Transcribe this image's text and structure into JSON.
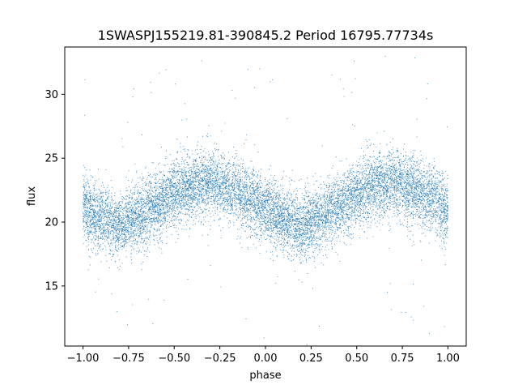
{
  "chart_data": {
    "type": "scatter",
    "title": "1SWASPJ155219.81-390845.2 Period 16795.77734s",
    "xlabel": "phase",
    "ylabel": "flux",
    "xlim": [
      -1.1,
      1.1
    ],
    "ylim": [
      10.3,
      33.7
    ],
    "xticks": [
      -1.0,
      -0.75,
      -0.5,
      -0.25,
      0.0,
      0.25,
      0.5,
      0.75,
      1.0
    ],
    "xtick_labels": [
      "−1.00",
      "−0.75",
      "−0.50",
      "−0.25",
      "0.00",
      "0.25",
      "0.50",
      "0.75",
      "1.00"
    ],
    "yticks": [
      15,
      20,
      25,
      30
    ],
    "ytick_labels": [
      "15",
      "20",
      "25",
      "30"
    ],
    "grid": false,
    "legend": "none",
    "color": "#1f77b4",
    "series": [
      {
        "phase_range": [
          -1.0,
          1.0
        ],
        "profile_phase": [
          0.0,
          0.1,
          0.2,
          0.3,
          0.4,
          0.5,
          0.6,
          0.7,
          0.8,
          0.9,
          1.0
        ],
        "profile_mean_flux": [
          21.0,
          20.3,
          19.7,
          20.4,
          21.3,
          22.2,
          22.8,
          23.1,
          22.6,
          21.9,
          21.0
        ],
        "profile_scatter": 1.5,
        "approx_point_count": 12000
      }
    ]
  }
}
